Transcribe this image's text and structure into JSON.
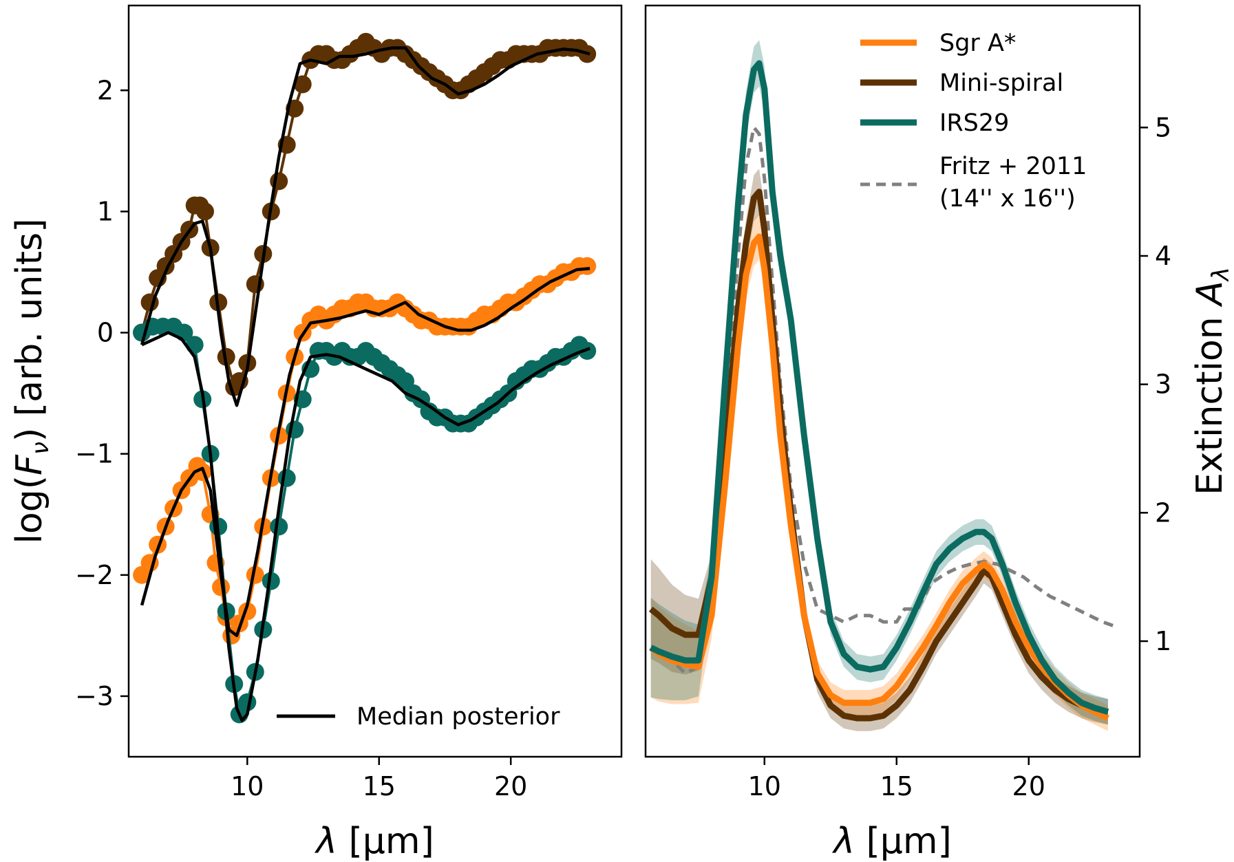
{
  "colors": {
    "sgr": "#ff7f0e",
    "mini": "#5c3205",
    "irs": "#0b6b60",
    "fritz": "#808080",
    "median": "#000000"
  },
  "chart_data": [
    {
      "type": "line",
      "panel": "left",
      "title": "",
      "xlabel_prefix": "λ",
      "xlabel_unit": " [µm]",
      "ylabel_prefix": "log(",
      "ylabel_var": "F",
      "ylabel_sub": "ν",
      "ylabel_suffix": ") [arb. units]",
      "xlim": [
        5.5,
        24.2
      ],
      "ylim": [
        -3.5,
        2.7
      ],
      "xticks": [
        10,
        15,
        20
      ],
      "xtick_labels": [
        "10",
        "15",
        "20"
      ],
      "yticks": [
        -3,
        -2,
        -1,
        0,
        1,
        2
      ],
      "ytick_labels": [
        "−3",
        "−2",
        "−1",
        "0",
        "1",
        "2"
      ],
      "legend": {
        "position": "lower-right",
        "entries": [
          "Median posterior"
        ]
      },
      "series": [
        {
          "name": "Mini-spiral data",
          "color_key": "mini",
          "x": [
            6.0,
            6.3,
            6.6,
            6.9,
            7.2,
            7.5,
            7.8,
            8.0,
            8.2,
            8.4,
            8.6,
            8.9,
            9.2,
            9.5,
            9.7,
            10.0,
            10.3,
            10.6,
            10.9,
            11.2,
            11.5,
            11.8,
            12.1,
            12.4,
            12.7,
            13.0,
            13.3,
            13.6,
            13.9,
            14.2,
            14.5,
            14.8,
            15.1,
            15.4,
            15.7,
            16.0,
            16.3,
            16.6,
            16.9,
            17.2,
            17.5,
            17.8,
            18.1,
            18.4,
            18.7,
            19.0,
            19.3,
            19.6,
            19.9,
            20.2,
            20.5,
            20.8,
            21.1,
            21.4,
            21.7,
            22.0,
            22.3,
            22.6,
            22.9
          ],
          "y": [
            0.0,
            0.25,
            0.45,
            0.55,
            0.65,
            0.75,
            0.85,
            1.05,
            1.05,
            1.0,
            0.7,
            0.25,
            -0.2,
            -0.45,
            -0.4,
            -0.25,
            0.4,
            0.65,
            1.0,
            1.25,
            1.55,
            1.85,
            2.05,
            2.25,
            2.3,
            2.3,
            2.25,
            2.25,
            2.3,
            2.35,
            2.4,
            2.35,
            2.3,
            2.35,
            2.35,
            2.3,
            2.25,
            2.2,
            2.15,
            2.1,
            2.05,
            2.0,
            2.0,
            2.05,
            2.1,
            2.15,
            2.2,
            2.25,
            2.25,
            2.3,
            2.3,
            2.3,
            2.3,
            2.35,
            2.35,
            2.35,
            2.35,
            2.35,
            2.3
          ]
        },
        {
          "name": "Sgr A* data",
          "color_key": "sgr",
          "x": [
            6.0,
            6.3,
            6.6,
            6.9,
            7.2,
            7.5,
            7.8,
            8.1,
            8.3,
            8.6,
            8.8,
            9.0,
            9.2,
            9.4,
            9.7,
            10.0,
            10.3,
            10.6,
            10.9,
            11.2,
            11.5,
            11.8,
            12.1,
            12.4,
            12.7,
            13.0,
            13.3,
            13.6,
            13.9,
            14.2,
            14.5,
            14.8,
            15.1,
            15.4,
            15.7,
            16.0,
            16.3,
            16.6,
            16.9,
            17.2,
            17.5,
            17.8,
            18.1,
            18.4,
            18.7,
            19.0,
            19.3,
            19.6,
            19.9,
            20.2,
            20.5,
            20.8,
            21.1,
            21.4,
            21.7,
            22.0,
            22.3,
            22.6,
            22.9
          ],
          "y": [
            -2.0,
            -1.9,
            -1.75,
            -1.6,
            -1.45,
            -1.3,
            -1.2,
            -1.1,
            -1.15,
            -1.5,
            -1.9,
            -2.1,
            -2.35,
            -2.5,
            -2.4,
            -2.3,
            -2.0,
            -1.6,
            -1.2,
            -0.85,
            -0.5,
            -0.2,
            0.0,
            0.1,
            0.15,
            0.1,
            0.15,
            0.2,
            0.2,
            0.25,
            0.25,
            0.2,
            0.2,
            0.2,
            0.25,
            0.2,
            0.15,
            0.1,
            0.1,
            0.05,
            0.05,
            0.05,
            0.05,
            0.05,
            0.1,
            0.15,
            0.15,
            0.2,
            0.25,
            0.25,
            0.3,
            0.35,
            0.4,
            0.4,
            0.45,
            0.5,
            0.5,
            0.55,
            0.55
          ]
        },
        {
          "name": "IRS29 data",
          "color_key": "irs",
          "x": [
            6.0,
            6.4,
            6.8,
            7.2,
            7.6,
            8.0,
            8.3,
            8.6,
            8.9,
            9.2,
            9.5,
            9.7,
            10.0,
            10.3,
            10.6,
            10.9,
            11.2,
            11.5,
            11.8,
            12.1,
            12.4,
            12.7,
            13.0,
            13.3,
            13.6,
            13.9,
            14.2,
            14.5,
            14.8,
            15.1,
            15.4,
            15.7,
            16.0,
            16.3,
            16.6,
            16.9,
            17.2,
            17.5,
            17.8,
            18.1,
            18.4,
            18.7,
            19.0,
            19.3,
            19.6,
            19.9,
            20.2,
            20.5,
            20.8,
            21.1,
            21.4,
            21.7,
            22.0,
            22.3,
            22.6,
            22.9
          ],
          "y": [
            0.0,
            0.05,
            0.05,
            0.05,
            0.0,
            -0.1,
            -0.55,
            -1.0,
            -1.6,
            -2.3,
            -2.9,
            -3.15,
            -3.05,
            -2.8,
            -2.45,
            -2.05,
            -1.6,
            -1.2,
            -0.8,
            -0.55,
            -0.3,
            -0.15,
            -0.15,
            -0.2,
            -0.15,
            -0.2,
            -0.2,
            -0.15,
            -0.2,
            -0.25,
            -0.3,
            -0.35,
            -0.4,
            -0.5,
            -0.55,
            -0.65,
            -0.7,
            -0.7,
            -0.75,
            -0.75,
            -0.75,
            -0.7,
            -0.65,
            -0.6,
            -0.55,
            -0.5,
            -0.4,
            -0.35,
            -0.3,
            -0.3,
            -0.25,
            -0.2,
            -0.2,
            -0.15,
            -0.1,
            -0.15
          ]
        },
        {
          "name": "Median posterior (Mini-spiral)",
          "color_key": "median",
          "x": [
            6.0,
            6.5,
            7.0,
            7.5,
            8.0,
            8.3,
            8.6,
            9.0,
            9.3,
            9.6,
            10.0,
            10.4,
            10.8,
            11.2,
            11.6,
            12.0,
            12.4,
            13.0,
            13.5,
            14.0,
            14.5,
            15.0,
            15.5,
            16.0,
            16.5,
            17.0,
            17.5,
            18.0,
            18.5,
            19.0,
            19.5,
            20.0,
            20.5,
            21.0,
            21.5,
            22.0,
            22.5,
            23.0
          ],
          "y": [
            -0.1,
            0.3,
            0.55,
            0.75,
            0.9,
            0.92,
            0.7,
            0.0,
            -0.4,
            -0.6,
            -0.3,
            0.3,
            0.9,
            1.45,
            1.9,
            2.22,
            2.25,
            2.22,
            2.28,
            2.28,
            2.3,
            2.33,
            2.35,
            2.35,
            2.2,
            2.1,
            2.05,
            1.97,
            2.0,
            2.05,
            2.12,
            2.2,
            2.25,
            2.3,
            2.32,
            2.34,
            2.33,
            2.3
          ]
        },
        {
          "name": "Median posterior (Sgr A*)",
          "color_key": "median",
          "x": [
            6.0,
            6.5,
            7.0,
            7.5,
            8.0,
            8.3,
            8.6,
            9.0,
            9.3,
            9.6,
            10.0,
            10.4,
            10.8,
            11.2,
            11.6,
            12.0,
            12.4,
            13.0,
            13.5,
            14.0,
            14.5,
            15.0,
            15.5,
            16.0,
            16.5,
            17.0,
            17.5,
            18.0,
            18.5,
            19.0,
            19.5,
            20.0,
            20.5,
            21.0,
            21.5,
            22.0,
            22.5,
            23.0
          ],
          "y": [
            -2.25,
            -1.85,
            -1.55,
            -1.3,
            -1.15,
            -1.12,
            -1.3,
            -2.0,
            -2.45,
            -2.5,
            -2.25,
            -1.8,
            -1.3,
            -0.8,
            -0.35,
            -0.05,
            0.08,
            0.1,
            0.12,
            0.15,
            0.18,
            0.15,
            0.2,
            0.25,
            0.15,
            0.1,
            0.05,
            0.02,
            0.02,
            0.06,
            0.12,
            0.2,
            0.27,
            0.35,
            0.42,
            0.47,
            0.52,
            0.53
          ]
        },
        {
          "name": "Median posterior (IRS29)",
          "color_key": "median",
          "x": [
            6.0,
            6.5,
            7.0,
            7.5,
            8.0,
            8.3,
            8.6,
            9.0,
            9.3,
            9.6,
            9.8,
            10.0,
            10.4,
            10.8,
            11.2,
            11.6,
            12.0,
            12.4,
            13.0,
            13.5,
            14.0,
            14.5,
            15.0,
            15.5,
            16.0,
            16.5,
            17.0,
            17.5,
            18.0,
            18.5,
            19.0,
            19.5,
            20.0,
            20.5,
            21.0,
            21.5,
            22.0,
            22.5,
            23.0
          ],
          "y": [
            -0.1,
            -0.05,
            0.0,
            -0.05,
            -0.2,
            -0.5,
            -1.0,
            -1.9,
            -2.6,
            -3.1,
            -3.2,
            -3.15,
            -2.7,
            -2.1,
            -1.45,
            -0.85,
            -0.4,
            -0.2,
            -0.18,
            -0.2,
            -0.25,
            -0.3,
            -0.35,
            -0.4,
            -0.5,
            -0.55,
            -0.62,
            -0.7,
            -0.76,
            -0.72,
            -0.65,
            -0.58,
            -0.48,
            -0.4,
            -0.33,
            -0.27,
            -0.22,
            -0.17,
            -0.13
          ]
        }
      ]
    },
    {
      "type": "line",
      "panel": "right",
      "title": "",
      "xlabel_prefix": "λ",
      "xlabel_unit": " [µm]",
      "ylabel_prefix": "Extinction ",
      "ylabel_var": "A",
      "ylabel_sub": "λ",
      "xlim": [
        5.5,
        24.2
      ],
      "ylim": [
        0.1,
        5.95
      ],
      "y_axis_side": "right",
      "xticks": [
        10,
        15,
        20
      ],
      "xtick_labels": [
        "10",
        "15",
        "20"
      ],
      "yticks": [
        1,
        2,
        3,
        4,
        5
      ],
      "ytick_labels": [
        "1",
        "2",
        "3",
        "4",
        "5"
      ],
      "legend": {
        "position": "upper-right",
        "entries": [
          "Sgr A*",
          "Mini-spiral",
          "IRS29",
          "Fritz + 2011",
          "(14'' x 16'')"
        ]
      },
      "series": [
        {
          "name": "Fritz + 2011",
          "color_key": "fritz",
          "style": "dashed",
          "x": [
            5.7,
            6.5,
            7.0,
            7.5,
            8.0,
            8.5,
            9.0,
            9.3,
            9.6,
            9.8,
            10.0,
            10.3,
            10.6,
            11.0,
            11.5,
            12.0,
            12.5,
            13.0,
            13.5,
            14.0,
            14.5,
            15.0,
            15.3,
            15.8,
            16.3,
            16.8,
            17.3,
            17.8,
            18.3,
            18.8,
            19.3,
            19.8,
            20.3,
            20.8,
            21.3,
            21.8,
            22.3,
            22.8,
            23.2
          ],
          "y": [
            0.95,
            0.85,
            0.75,
            0.8,
            1.5,
            2.7,
            4.0,
            4.7,
            5.0,
            4.95,
            4.6,
            3.8,
            3.0,
            2.2,
            1.6,
            1.25,
            1.2,
            1.15,
            1.2,
            1.2,
            1.15,
            1.15,
            1.25,
            1.25,
            1.45,
            1.52,
            1.57,
            1.6,
            1.62,
            1.6,
            1.55,
            1.5,
            1.42,
            1.35,
            1.3,
            1.25,
            1.2,
            1.15,
            1.12
          ]
        },
        {
          "name": "Mini-spiral",
          "color_key": "mini",
          "x": [
            5.7,
            6.0,
            6.5,
            7.0,
            7.5,
            8.0,
            8.5,
            9.0,
            9.3,
            9.6,
            9.8,
            10.0,
            10.3,
            10.6,
            11.0,
            11.5,
            12.0,
            12.5,
            13.0,
            13.5,
            14.0,
            14.5,
            15.0,
            15.5,
            16.0,
            16.5,
            17.0,
            17.5,
            18.0,
            18.3,
            18.6,
            19.0,
            19.5,
            20.0,
            20.5,
            21.0,
            21.5,
            22.0,
            22.5,
            23.0
          ],
          "y": [
            1.25,
            1.2,
            1.1,
            1.05,
            1.05,
            1.5,
            2.5,
            3.6,
            4.1,
            4.45,
            4.5,
            4.2,
            3.5,
            2.8,
            2.0,
            1.2,
            0.7,
            0.5,
            0.42,
            0.4,
            0.4,
            0.42,
            0.5,
            0.62,
            0.8,
            1.0,
            1.15,
            1.3,
            1.45,
            1.55,
            1.5,
            1.3,
            1.05,
            0.85,
            0.72,
            0.62,
            0.55,
            0.5,
            0.47,
            0.45
          ]
        },
        {
          "name": "Sgr A*",
          "color_key": "sgr",
          "x": [
            5.7,
            6.0,
            6.5,
            7.0,
            7.5,
            8.0,
            8.5,
            9.0,
            9.3,
            9.6,
            9.8,
            10.0,
            10.3,
            10.6,
            11.0,
            11.5,
            12.0,
            12.5,
            13.0,
            13.5,
            14.0,
            14.5,
            15.0,
            15.5,
            16.0,
            16.5,
            17.0,
            17.5,
            18.0,
            18.3,
            18.6,
            19.0,
            19.5,
            20.0,
            20.5,
            21.0,
            21.5,
            22.0,
            22.5,
            23.0
          ],
          "y": [
            0.95,
            0.9,
            0.85,
            0.82,
            0.8,
            1.2,
            2.2,
            3.3,
            3.85,
            4.1,
            4.15,
            3.9,
            3.3,
            2.6,
            1.9,
            1.2,
            0.75,
            0.58,
            0.52,
            0.52,
            0.52,
            0.55,
            0.65,
            0.8,
            0.95,
            1.12,
            1.3,
            1.45,
            1.55,
            1.6,
            1.55,
            1.4,
            1.15,
            0.95,
            0.8,
            0.68,
            0.58,
            0.5,
            0.45,
            0.4
          ]
        },
        {
          "name": "IRS29",
          "color_key": "irs",
          "x": [
            5.7,
            6.0,
            6.5,
            7.0,
            7.5,
            8.0,
            8.5,
            9.0,
            9.3,
            9.6,
            9.8,
            10.0,
            10.3,
            10.6,
            11.0,
            11.5,
            12.0,
            12.5,
            13.0,
            13.5,
            14.0,
            14.5,
            15.0,
            15.5,
            16.0,
            16.5,
            17.0,
            17.5,
            18.0,
            18.3,
            18.6,
            19.0,
            19.5,
            20.0,
            20.5,
            21.0,
            21.5,
            22.0,
            22.5,
            23.0
          ],
          "y": [
            0.95,
            0.92,
            0.88,
            0.85,
            0.85,
            1.5,
            3.0,
            4.4,
            5.1,
            5.45,
            5.5,
            5.3,
            4.5,
            4.0,
            3.5,
            2.6,
            1.8,
            1.15,
            0.9,
            0.8,
            0.78,
            0.8,
            0.95,
            1.15,
            1.38,
            1.6,
            1.72,
            1.8,
            1.85,
            1.85,
            1.8,
            1.6,
            1.3,
            1.05,
            0.85,
            0.7,
            0.6,
            0.52,
            0.48,
            0.45
          ]
        }
      ]
    }
  ]
}
